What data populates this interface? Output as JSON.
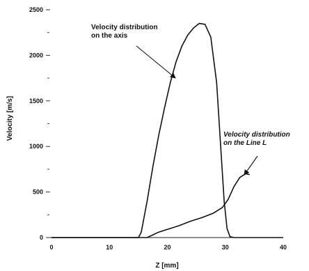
{
  "chart_data": {
    "type": "line",
    "xlabel": "Z [mm]",
    "ylabel": "Velocity [m/s]",
    "xlim": [
      0,
      40
    ],
    "ylim": [
      0,
      2500
    ],
    "x_ticks": [
      "0",
      "10",
      "20",
      "30",
      "40"
    ],
    "y_ticks": [
      "0",
      "500",
      "1000",
      "1500",
      "2000",
      "2500"
    ],
    "grid": false,
    "series": [
      {
        "name": "Velocity distribution on the axis",
        "x": [
          0,
          10,
          15,
          15.5,
          16.5,
          17.5,
          18.5,
          19.5,
          20.5,
          21.5,
          22.5,
          23.5,
          24.5,
          25.5,
          26.5,
          27.5,
          28.5,
          29.2,
          29.8,
          30.3,
          30.8,
          31.5,
          35,
          40
        ],
        "y": [
          0,
          0,
          0,
          60,
          400,
          780,
          1120,
          1420,
          1700,
          1930,
          2100,
          2220,
          2300,
          2350,
          2340,
          2200,
          1700,
          1000,
          400,
          100,
          10,
          0,
          0,
          0
        ]
      },
      {
        "name": "Velocity distribution on the Line L",
        "x": [
          0,
          10,
          16.5,
          17.5,
          18.5,
          20,
          22,
          24,
          26,
          28,
          29.5,
          30.5,
          31.5,
          32.5,
          33.5,
          34.2
        ],
        "y": [
          0,
          0,
          0,
          30,
          60,
          90,
          130,
          180,
          220,
          270,
          330,
          420,
          560,
          660,
          700,
          690
        ]
      }
    ],
    "annotations": [
      {
        "lines": [
          "Velocity distribution",
          "on the axis"
        ],
        "italic": false
      },
      {
        "lines": [
          "Velocity distribution",
          "on the Line L"
        ],
        "italic": true
      }
    ]
  }
}
